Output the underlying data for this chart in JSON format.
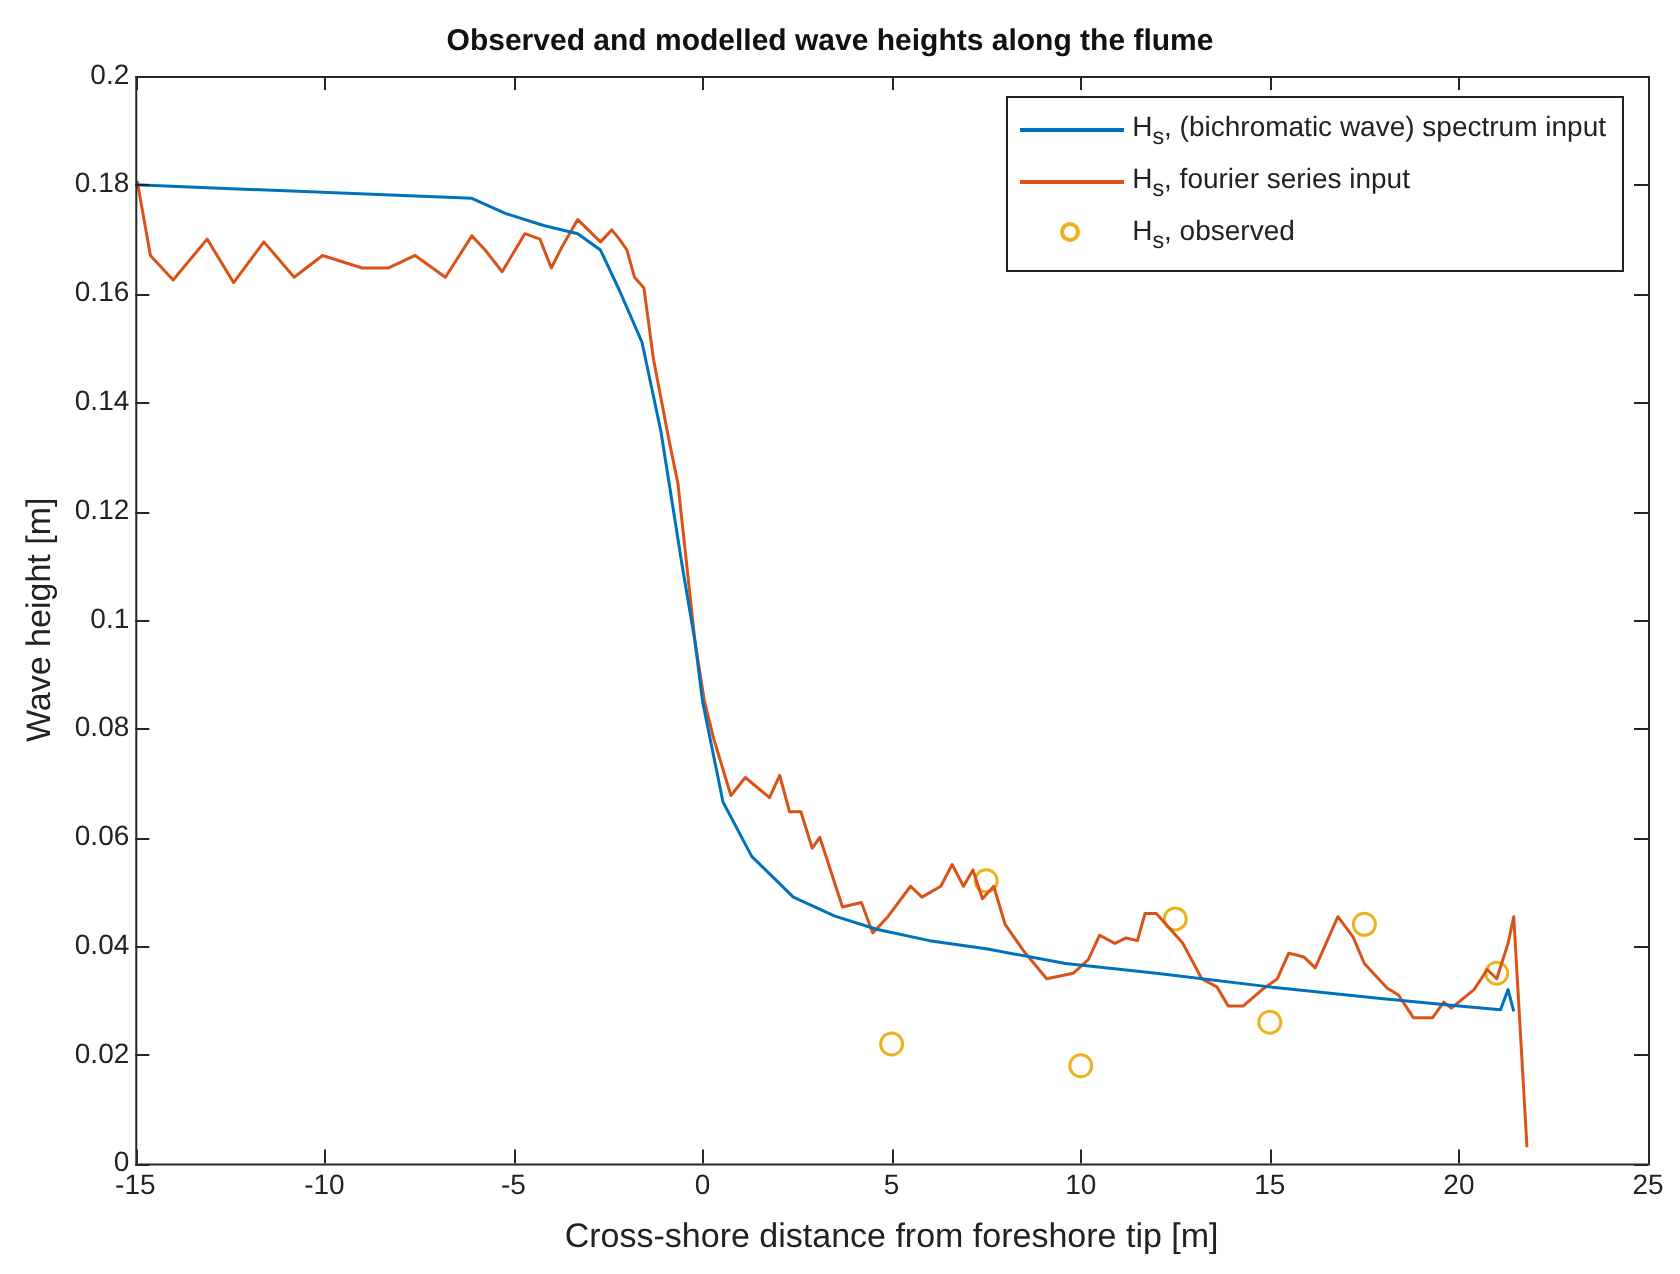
{
  "chart_data": {
    "type": "line",
    "title": "Observed and modelled wave heights along the flume",
    "xlabel": "Cross-shore distance from foreshore tip [m]",
    "ylabel": "Wave height [m]",
    "xlim": [
      -15,
      25
    ],
    "xticks": [
      -15,
      -10,
      -5,
      0,
      5,
      10,
      15,
      20,
      25
    ],
    "ylim": [
      0,
      0.2
    ],
    "yticks": [
      0,
      0.02,
      0.04,
      0.06,
      0.08,
      0.1,
      0.12,
      0.14,
      0.16,
      0.18,
      0.2
    ],
    "grid": false,
    "legend": "top right",
    "line_style": "solid",
    "series": [
      {
        "name": "H$_{s}$, (bichromatic wave) spectrum input",
        "color": "#0072bd",
        "marker": "none",
        "x": [
          -15,
          -6.1,
          -5.2,
          -4.2,
          -3.3,
          -2.7,
          -2.2,
          -1.6,
          -1.1,
          -0.54,
          -0.2,
          0,
          0.54,
          1.3,
          2.4,
          3.5,
          4.6,
          6,
          7.5,
          9.6,
          12,
          15,
          18,
          20,
          21.1,
          21.3,
          21.45
        ],
        "values": [
          0.18,
          0.1775,
          0.1747,
          0.1725,
          0.171,
          0.168,
          0.1606,
          0.151,
          0.1346,
          0.11,
          0.096,
          0.085,
          0.0665,
          0.0565,
          0.049,
          0.0455,
          0.0431,
          0.041,
          0.0395,
          0.0368,
          0.035,
          0.0325,
          0.0303,
          0.029,
          0.0283,
          0.032,
          0.028
        ]
      },
      {
        "name": "H$_{s}$, fourier series input",
        "color": "#d95319",
        "marker": "none",
        "x": [
          -14.95,
          -14.6,
          -14.0,
          -13.1,
          -12.4,
          -11.6,
          -10.8,
          -10.05,
          -9.0,
          -8.3,
          -7.6,
          -6.8,
          -6.1,
          -5.75,
          -5.3,
          -4.7,
          -4.3,
          -4.0,
          -3.7,
          -3.3,
          -2.7,
          -2.4,
          -2.2,
          -2.0,
          -1.8,
          -1.55,
          -1.3,
          -0.9,
          -0.65,
          -0.2,
          0.05,
          0.3,
          0.75,
          1.13,
          1.77,
          2.04,
          2.3,
          2.6,
          2.9,
          3.1,
          3.7,
          4.2,
          4.5,
          4.9,
          5.5,
          5.8,
          6.3,
          6.6,
          6.9,
          7.15,
          7.4,
          7.7,
          8.0,
          8.5,
          9.1,
          9.8,
          10.2,
          10.5,
          10.9,
          11.2,
          11.5,
          11.7,
          12.0,
          12.7,
          13.2,
          13.6,
          13.9,
          14.3,
          14.8,
          15.2,
          15.5,
          15.9,
          16.2,
          16.8,
          17.2,
          17.5,
          18.1,
          18.4,
          18.8,
          19.3,
          19.6,
          19.8,
          20.4,
          20.75,
          21.0,
          21.3,
          21.45,
          21.8
        ],
        "values": [
          0.1807,
          0.167,
          0.1625,
          0.17,
          0.162,
          0.1695,
          0.163,
          0.167,
          0.1647,
          0.1647,
          0.167,
          0.163,
          0.1706,
          0.168,
          0.164,
          0.171,
          0.17,
          0.1647,
          0.1688,
          0.1736,
          0.1695,
          0.1717,
          0.17,
          0.168,
          0.163,
          0.161,
          0.148,
          0.1335,
          0.125,
          0.096,
          0.085,
          0.078,
          0.0677,
          0.071,
          0.0673,
          0.0714,
          0.0647,
          0.0647,
          0.058,
          0.06,
          0.0472,
          0.048,
          0.0424,
          0.0454,
          0.051,
          0.049,
          0.051,
          0.055,
          0.051,
          0.054,
          0.0487,
          0.051,
          0.044,
          0.039,
          0.034,
          0.035,
          0.0375,
          0.042,
          0.0405,
          0.0415,
          0.041,
          0.046,
          0.046,
          0.0405,
          0.034,
          0.0325,
          0.029,
          0.029,
          0.032,
          0.034,
          0.0387,
          0.038,
          0.036,
          0.0454,
          0.0417,
          0.0368,
          0.0323,
          0.031,
          0.0268,
          0.0268,
          0.0297,
          0.0286,
          0.032,
          0.0357,
          0.034,
          0.0405,
          0.0454,
          0.003
        ]
      },
      {
        "name": "H$_{s}$, observed",
        "color": "#edb120",
        "type": "scatter",
        "marker": "circle",
        "x": [
          5,
          7.5,
          10,
          12.5,
          15,
          17.5,
          21
        ],
        "values": [
          0.022,
          0.052,
          0.018,
          0.045,
          0.026,
          0.044,
          0.035
        ]
      }
    ]
  }
}
